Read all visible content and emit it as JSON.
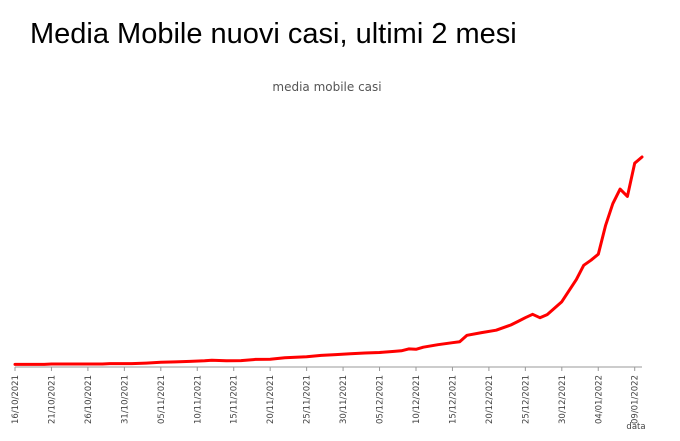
{
  "page": {
    "title": "Media Mobile nuovi casi, ultimi 2 mesi"
  },
  "chart_data": {
    "type": "line",
    "title": "media mobile casi",
    "xlabel": "data",
    "ylabel": "",
    "x_start": "2021-10-16",
    "x_end": "2022-01-10",
    "ylim": [
      0,
      220000
    ],
    "grid": false,
    "colors": {
      "line": "#ff0000",
      "axis": "#999999"
    },
    "x_ticks": [
      "16/10/2021",
      "21/10/2021",
      "26/10/2021",
      "31/10/2021",
      "05/11/2021",
      "10/11/2021",
      "15/11/2021",
      "20/11/2021",
      "25/11/2021",
      "30/11/2021",
      "05/12/2021",
      "10/12/2021",
      "15/12/2021",
      "20/12/2021",
      "25/12/2021",
      "30/12/2021",
      "04/01/2022",
      "09/01/2022"
    ],
    "series": [
      {
        "points": [
          [
            "2021-10-16",
            2600
          ],
          [
            "2021-10-20",
            2600
          ],
          [
            "2021-10-21",
            3000
          ],
          [
            "2021-10-26",
            3000
          ],
          [
            "2021-10-28",
            3000
          ],
          [
            "2021-10-29",
            3400
          ],
          [
            "2021-11-01",
            3400
          ],
          [
            "2021-11-03",
            3900
          ],
          [
            "2021-11-05",
            4700
          ],
          [
            "2021-11-07",
            5100
          ],
          [
            "2021-11-09",
            5600
          ],
          [
            "2021-11-11",
            6200
          ],
          [
            "2021-11-12",
            6800
          ],
          [
            "2021-11-14",
            6200
          ],
          [
            "2021-11-16",
            6400
          ],
          [
            "2021-11-18",
            7600
          ],
          [
            "2021-11-20",
            7800
          ],
          [
            "2021-11-22",
            9200
          ],
          [
            "2021-11-25",
            10200
          ],
          [
            "2021-11-27",
            11600
          ],
          [
            "2021-11-29",
            12400
          ],
          [
            "2021-12-01",
            13300
          ],
          [
            "2021-12-03",
            14000
          ],
          [
            "2021-12-05",
            14500
          ],
          [
            "2021-12-07",
            15600
          ],
          [
            "2021-12-08",
            16200
          ],
          [
            "2021-12-09",
            18100
          ],
          [
            "2021-12-10",
            17700
          ],
          [
            "2021-12-11",
            19800
          ],
          [
            "2021-12-13",
            22300
          ],
          [
            "2021-12-15",
            24300
          ],
          [
            "2021-12-16",
            25200
          ],
          [
            "2021-12-17",
            31700
          ],
          [
            "2021-12-19",
            34400
          ],
          [
            "2021-12-21",
            36800
          ],
          [
            "2021-12-23",
            42000
          ],
          [
            "2021-12-24",
            45600
          ],
          [
            "2021-12-25",
            49300
          ],
          [
            "2021-12-26",
            52700
          ],
          [
            "2021-12-27",
            49300
          ],
          [
            "2021-12-28",
            52400
          ],
          [
            "2021-12-30",
            65300
          ],
          [
            "2021-12-31",
            76400
          ],
          [
            "2022-01-01",
            87600
          ],
          [
            "2022-01-02",
            101700
          ],
          [
            "2022-01-03",
            106800
          ],
          [
            "2022-01-04",
            112800
          ],
          [
            "2022-01-05",
            141300
          ],
          [
            "2022-01-06",
            163300
          ],
          [
            "2022-01-07",
            177900
          ],
          [
            "2022-01-08",
            170600
          ],
          [
            "2022-01-09",
            203800
          ],
          [
            "2022-01-10",
            210000
          ]
        ]
      }
    ]
  }
}
